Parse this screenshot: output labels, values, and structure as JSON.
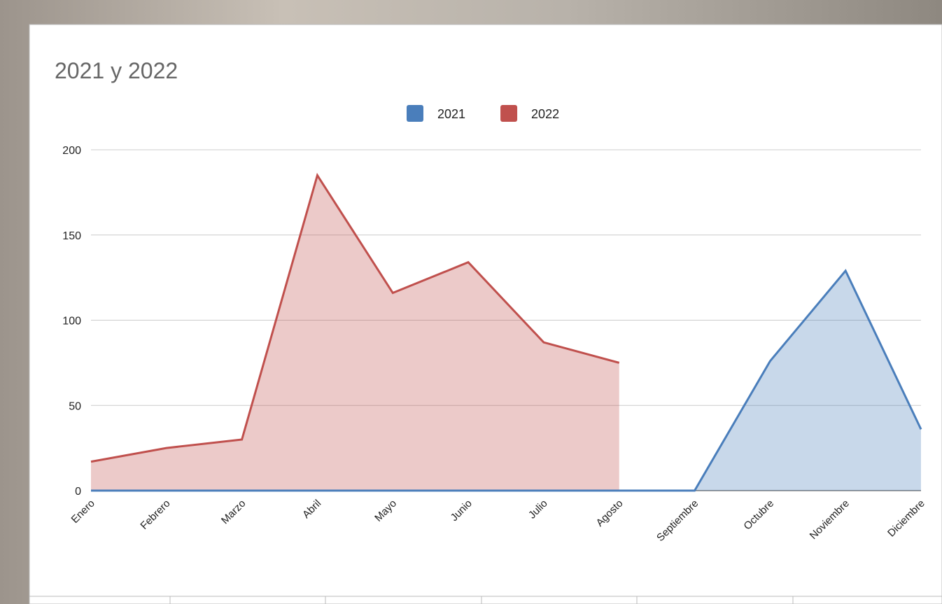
{
  "chart_data": {
    "type": "area",
    "title": "2021 y 2022",
    "categories": [
      "Enero",
      "Febrero",
      "Marzo",
      "Abril",
      "Mayo",
      "Junio",
      "Julio",
      "Agosto",
      "Septiembre",
      "Octubre",
      "Noviembre",
      "Diciembre"
    ],
    "series": [
      {
        "name": "2021",
        "color": "#4a7ebb",
        "values": [
          0,
          0,
          0,
          0,
          0,
          0,
          0,
          0,
          0,
          76,
          129,
          36
        ]
      },
      {
        "name": "2022",
        "color": "#c0504d",
        "values": [
          17,
          25,
          30,
          185,
          116,
          134,
          87,
          75,
          null,
          null,
          null,
          null
        ]
      }
    ],
    "ylim": [
      0,
      200
    ],
    "yticks": [
      0,
      50,
      100,
      150,
      200
    ],
    "grid": true,
    "legend": "top"
  }
}
